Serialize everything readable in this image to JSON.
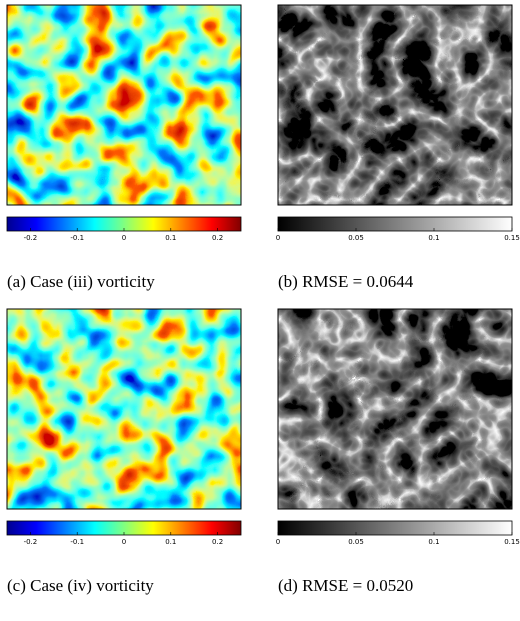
{
  "panels": [
    {
      "caption": "(a) Case (iii) vorticity",
      "colormap": "jet",
      "colorbar": {
        "lim": [
          -0.25,
          0.25
        ],
        "ticks": [
          -0.2,
          -0.1,
          0,
          0.1,
          0.2
        ]
      }
    },
    {
      "caption": "(b) RMSE = 0.0644",
      "colormap": "gray",
      "colorbar": {
        "lim": [
          0,
          0.15
        ],
        "ticks": [
          0,
          0.05,
          0.1,
          0.15
        ]
      }
    },
    {
      "caption": "(c) Case (iv) vorticity",
      "colormap": "jet",
      "colorbar": {
        "lim": [
          -0.25,
          0.25
        ],
        "ticks": [
          -0.2,
          -0.1,
          0,
          0.1,
          0.2
        ]
      }
    },
    {
      "caption": "(d) RMSE = 0.0520",
      "colormap": "gray",
      "colorbar": {
        "lim": [
          0,
          0.15
        ],
        "ticks": [
          0,
          0.05,
          0.1,
          0.15
        ]
      }
    }
  ]
}
